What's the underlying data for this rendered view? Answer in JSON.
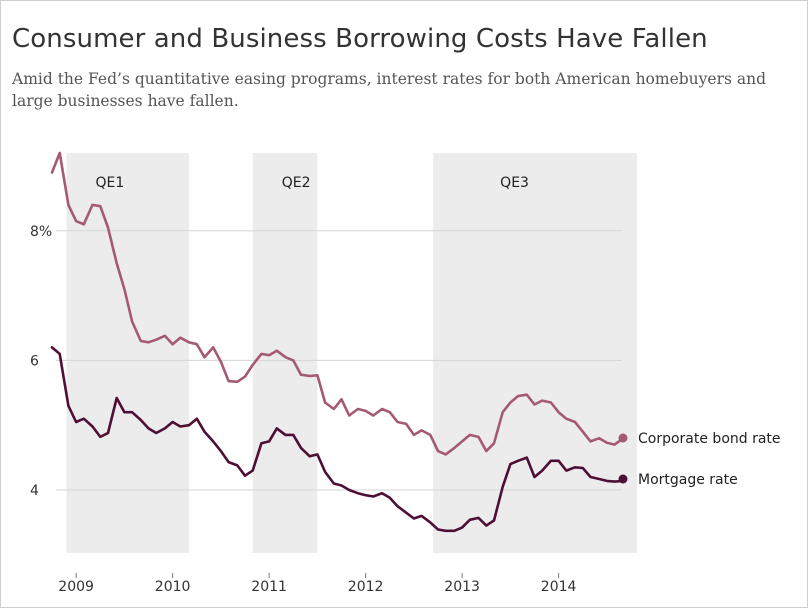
{
  "header": {
    "title": "Consumer and Business Borrowing Costs Have Fallen",
    "subtitle": "Amid the Fed’s quantitative easing programs, interest rates for both American homebuyers and large businesses have fallen."
  },
  "chart_data": {
    "type": "line",
    "title": "Consumer and Business Borrowing Costs Have Fallen",
    "xlabel": "",
    "ylabel": "",
    "xlim": [
      2008.75,
      2014.75
    ],
    "ylim": [
      2.9,
      9.4
    ],
    "grid": true,
    "y_ticks": [
      {
        "value": 8,
        "label": "8%"
      },
      {
        "value": 6,
        "label": "6"
      },
      {
        "value": 4,
        "label": "4"
      }
    ],
    "x_ticks": [
      {
        "value": 2009,
        "label": "2009"
      },
      {
        "value": 2010,
        "label": "2010"
      },
      {
        "value": 2011,
        "label": "2011"
      },
      {
        "value": 2012,
        "label": "2012"
      },
      {
        "value": 2013,
        "label": "2013"
      },
      {
        "value": 2014,
        "label": "2014"
      }
    ],
    "shaded_periods": [
      {
        "label": "QE1",
        "start": 2008.9,
        "end": 2010.17
      },
      {
        "label": "QE2",
        "start": 2010.83,
        "end": 2011.5
      },
      {
        "label": "QE3",
        "start": 2012.7,
        "end": 2014.83
      }
    ],
    "series": [
      {
        "name": "Corporate bond rate",
        "color": "#a45a72",
        "x": [
          2008.75,
          2008.83,
          2008.92,
          2009.0,
          2009.08,
          2009.17,
          2009.25,
          2009.33,
          2009.42,
          2009.5,
          2009.58,
          2009.67,
          2009.75,
          2009.83,
          2009.92,
          2010.0,
          2010.08,
          2010.17,
          2010.25,
          2010.33,
          2010.42,
          2010.5,
          2010.58,
          2010.67,
          2010.75,
          2010.83,
          2010.92,
          2011.0,
          2011.08,
          2011.17,
          2011.25,
          2011.33,
          2011.42,
          2011.5,
          2011.58,
          2011.67,
          2011.75,
          2011.83,
          2011.92,
          2012.0,
          2012.08,
          2012.17,
          2012.25,
          2012.33,
          2012.42,
          2012.5,
          2012.58,
          2012.67,
          2012.75,
          2012.83,
          2012.92,
          2013.0,
          2013.08,
          2013.17,
          2013.25,
          2013.33,
          2013.42,
          2013.5,
          2013.58,
          2013.67,
          2013.75,
          2013.83,
          2013.92,
          2014.0,
          2014.08,
          2014.17,
          2014.25,
          2014.33,
          2014.42,
          2014.5,
          2014.58,
          2014.67
        ],
        "values": [
          8.9,
          9.2,
          8.4,
          8.15,
          8.1,
          8.4,
          8.38,
          8.05,
          7.5,
          7.1,
          6.6,
          6.3,
          6.28,
          6.32,
          6.38,
          6.25,
          6.35,
          6.28,
          6.25,
          6.05,
          6.2,
          5.98,
          5.68,
          5.67,
          5.75,
          5.93,
          6.1,
          6.08,
          6.15,
          6.05,
          6.0,
          5.78,
          5.76,
          5.77,
          5.35,
          5.25,
          5.4,
          5.15,
          5.25,
          5.22,
          5.15,
          5.25,
          5.2,
          5.05,
          5.02,
          4.85,
          4.92,
          4.85,
          4.6,
          4.55,
          4.65,
          4.75,
          4.85,
          4.82,
          4.6,
          4.72,
          5.2,
          5.35,
          5.45,
          5.47,
          5.32,
          5.38,
          5.35,
          5.2,
          5.1,
          5.05,
          4.9,
          4.75,
          4.8,
          4.73,
          4.7,
          4.8
        ]
      },
      {
        "name": "Mortgage rate",
        "color": "#4e0f35",
        "x": [
          2008.75,
          2008.83,
          2008.92,
          2009.0,
          2009.08,
          2009.17,
          2009.25,
          2009.33,
          2009.42,
          2009.5,
          2009.58,
          2009.67,
          2009.75,
          2009.83,
          2009.92,
          2010.0,
          2010.08,
          2010.17,
          2010.25,
          2010.33,
          2010.42,
          2010.5,
          2010.58,
          2010.67,
          2010.75,
          2010.83,
          2010.92,
          2011.0,
          2011.08,
          2011.17,
          2011.25,
          2011.33,
          2011.42,
          2011.5,
          2011.58,
          2011.67,
          2011.75,
          2011.83,
          2011.92,
          2012.0,
          2012.08,
          2012.17,
          2012.25,
          2012.33,
          2012.42,
          2012.5,
          2012.58,
          2012.67,
          2012.75,
          2012.83,
          2012.92,
          2013.0,
          2013.08,
          2013.17,
          2013.25,
          2013.33,
          2013.42,
          2013.5,
          2013.58,
          2013.67,
          2013.75,
          2013.83,
          2013.92,
          2014.0,
          2014.08,
          2014.17,
          2014.25,
          2014.33,
          2014.42,
          2014.5,
          2014.58,
          2014.67
        ],
        "values": [
          6.2,
          6.1,
          5.3,
          5.05,
          5.1,
          4.98,
          4.82,
          4.88,
          5.42,
          5.2,
          5.2,
          5.08,
          4.95,
          4.88,
          4.95,
          5.05,
          4.98,
          5.0,
          5.1,
          4.9,
          4.75,
          4.6,
          4.43,
          4.38,
          4.22,
          4.3,
          4.72,
          4.75,
          4.95,
          4.85,
          4.85,
          4.65,
          4.52,
          4.55,
          4.28,
          4.1,
          4.07,
          4.0,
          3.95,
          3.92,
          3.9,
          3.95,
          3.88,
          3.75,
          3.65,
          3.56,
          3.6,
          3.5,
          3.39,
          3.37,
          3.37,
          3.42,
          3.54,
          3.57,
          3.45,
          3.53,
          4.05,
          4.4,
          4.45,
          4.5,
          4.2,
          4.3,
          4.45,
          4.45,
          4.3,
          4.35,
          4.34,
          4.2,
          4.17,
          4.14,
          4.13,
          4.14
        ]
      }
    ]
  }
}
